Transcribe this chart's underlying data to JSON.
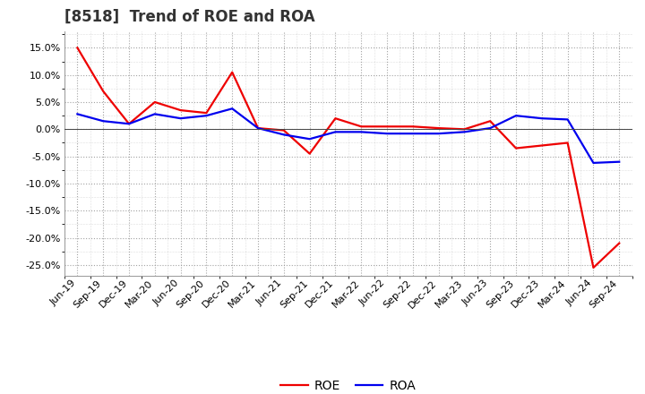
{
  "title": "[8518]  Trend of ROE and ROA",
  "labels": [
    "Jun-19",
    "Sep-19",
    "Dec-19",
    "Mar-20",
    "Jun-20",
    "Sep-20",
    "Dec-20",
    "Mar-21",
    "Jun-21",
    "Sep-21",
    "Dec-21",
    "Mar-22",
    "Jun-22",
    "Sep-22",
    "Dec-22",
    "Mar-23",
    "Jun-23",
    "Sep-23",
    "Dec-23",
    "Mar-24",
    "Jun-24",
    "Sep-24"
  ],
  "ROE": [
    15.0,
    7.0,
    1.0,
    5.0,
    3.5,
    3.0,
    10.5,
    0.2,
    -0.2,
    -4.5,
    2.0,
    0.5,
    0.5,
    0.5,
    0.2,
    0.0,
    1.5,
    -3.5,
    -3.0,
    -2.5,
    -25.5,
    -21.0
  ],
  "ROA": [
    2.8,
    1.5,
    1.0,
    2.8,
    2.0,
    2.5,
    3.8,
    0.2,
    -1.0,
    -1.8,
    -0.5,
    -0.5,
    -0.8,
    -0.8,
    -0.8,
    -0.5,
    0.2,
    2.5,
    2.0,
    1.8,
    -6.2,
    -6.0
  ],
  "roe_color": "#ee0000",
  "roa_color": "#0000ee",
  "ylim": [
    -27,
    18
  ],
  "yticks": [
    -25,
    -20,
    -15,
    -10,
    -5,
    0,
    5,
    10,
    15
  ],
  "background_color": "#ffffff",
  "grid_color": "#999999",
  "title_fontsize": 12,
  "legend_fontsize": 10,
  "tick_fontsize": 8,
  "title_color": "#333333"
}
